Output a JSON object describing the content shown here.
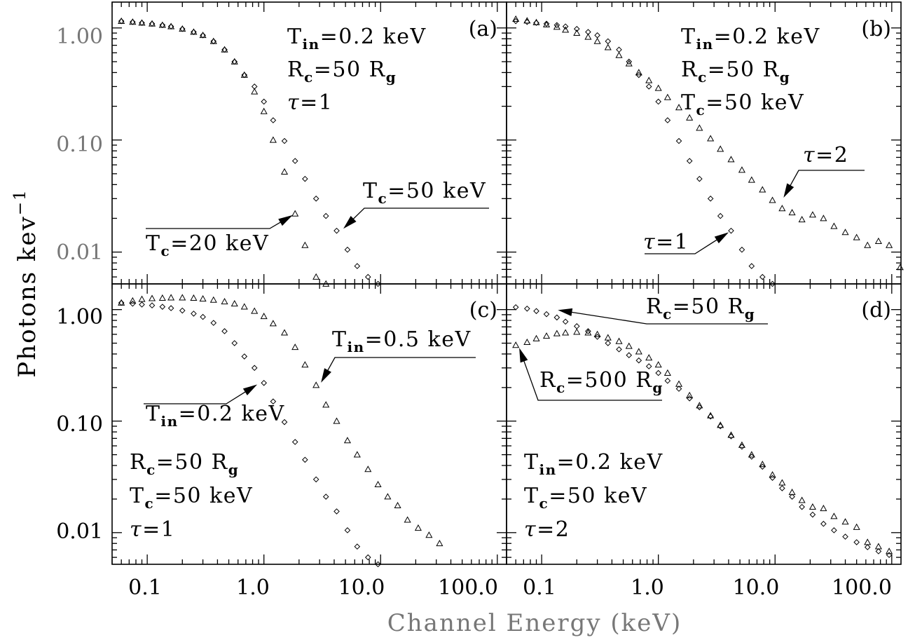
{
  "figure": {
    "xlabel": "Channel Energy (keV)",
    "ylabel_main": "Photons kev",
    "ylabel_sup": "−1",
    "y_ticks": [
      "1.00",
      "0.10",
      "0.01"
    ],
    "x_ticks": [
      "0.1",
      "1.0",
      "10.0",
      "100.0"
    ]
  },
  "chart_data": [
    {
      "type": "scatter",
      "panel": "(a)",
      "xscale": "log",
      "yscale": "log",
      "xlim": [
        0.05,
        120
      ],
      "ylim": [
        0.0052,
        1.7
      ],
      "series": [
        {
          "marker": "diamond",
          "x": [
            0.06,
            0.075,
            0.09,
            0.11,
            0.135,
            0.16,
            0.2,
            0.25,
            0.3,
            0.37,
            0.46,
            0.56,
            0.68,
            0.83,
            1.0,
            1.2,
            1.5,
            1.85,
            2.25,
            2.8,
            3.4,
            4.2,
            5.2,
            6.3,
            7.8,
            9.5
          ],
          "y": [
            1.15,
            1.13,
            1.11,
            1.09,
            1.06,
            1.03,
            0.98,
            0.92,
            0.86,
            0.76,
            0.64,
            0.5,
            0.38,
            0.3,
            0.22,
            0.15,
            0.098,
            0.065,
            0.045,
            0.03,
            0.021,
            0.0155,
            0.0105,
            0.0075,
            0.006,
            0.0052
          ]
        },
        {
          "marker": "triangle",
          "x": [
            0.06,
            0.075,
            0.09,
            0.11,
            0.135,
            0.16,
            0.2,
            0.25,
            0.3,
            0.37,
            0.46,
            0.56,
            0.68,
            0.83,
            1.0,
            1.2,
            1.5,
            1.85,
            2.25,
            2.8,
            3.4
          ],
          "y": [
            1.15,
            1.13,
            1.11,
            1.09,
            1.06,
            1.03,
            0.98,
            0.92,
            0.86,
            0.76,
            0.64,
            0.5,
            0.38,
            0.27,
            0.18,
            0.1,
            0.052,
            0.022,
            0.0115,
            0.006,
            0.0052
          ]
        }
      ],
      "annotations": [
        {
          "main": "T",
          "sub": "in",
          "tail": "=0.2 keV"
        },
        {
          "main": "R",
          "sub": "c",
          "tail": "=50 R",
          "sub2": "g"
        },
        {
          "main": "τ",
          "tail": "=1"
        },
        {
          "main": "T",
          "sub": "c",
          "tail": "=50 keV",
          "arrow_to": [
            4.6,
            0.0155
          ]
        },
        {
          "main": "T",
          "sub": "c",
          "tail": "=20 keV",
          "arrow_to": [
            1.85,
            0.022
          ]
        }
      ]
    },
    {
      "type": "scatter",
      "panel": "(b)",
      "xscale": "log",
      "yscale": "log",
      "xlim": [
        0.05,
        120
      ],
      "ylim": [
        0.0052,
        1.7
      ],
      "series": [
        {
          "marker": "diamond",
          "x": [
            0.06,
            0.075,
            0.09,
            0.11,
            0.135,
            0.16,
            0.2,
            0.25,
            0.3,
            0.37,
            0.46,
            0.56,
            0.68,
            0.83,
            1.0,
            1.2,
            1.5,
            1.85,
            2.25,
            2.8,
            3.4,
            4.2,
            5.2,
            6.3,
            7.8,
            9.5
          ],
          "y": [
            1.15,
            1.13,
            1.11,
            1.09,
            1.06,
            1.03,
            0.98,
            0.92,
            0.86,
            0.76,
            0.64,
            0.5,
            0.38,
            0.3,
            0.22,
            0.15,
            0.098,
            0.065,
            0.045,
            0.03,
            0.021,
            0.0155,
            0.0105,
            0.0075,
            0.006,
            0.0052
          ]
        },
        {
          "marker": "triangle",
          "x": [
            0.06,
            0.075,
            0.09,
            0.11,
            0.135,
            0.16,
            0.2,
            0.25,
            0.3,
            0.37,
            0.46,
            0.56,
            0.68,
            0.83,
            1.0,
            1.2,
            1.5,
            1.85,
            2.25,
            2.8,
            3.4,
            4.2,
            5.2,
            6.3,
            7.8,
            9.5,
            11.5,
            14,
            17,
            21,
            26,
            32,
            40,
            50,
            62,
            77,
            95,
            118
          ],
          "y": [
            1.2,
            1.16,
            1.12,
            1.07,
            1.02,
            0.96,
            0.9,
            0.83,
            0.76,
            0.67,
            0.57,
            0.48,
            0.4,
            0.34,
            0.29,
            0.24,
            0.195,
            0.158,
            0.128,
            0.103,
            0.083,
            0.067,
            0.054,
            0.044,
            0.036,
            0.029,
            0.0245,
            0.0225,
            0.0195,
            0.0215,
            0.02,
            0.017,
            0.015,
            0.0135,
            0.0115,
            0.0125,
            0.0115,
            0.0073
          ]
        }
      ],
      "annotations": [
        {
          "main": "T",
          "sub": "in",
          "tail": "=0.2 keV"
        },
        {
          "main": "R",
          "sub": "c",
          "tail": "=50 R",
          "sub2": "g"
        },
        {
          "main": "T",
          "sub": "c",
          "tail": "=50 keV"
        },
        {
          "main": "τ",
          "tail": "=2",
          "arrow_to": [
            11.5,
            0.029
          ]
        },
        {
          "main": "τ",
          "tail": "=1",
          "arrow_to": [
            4.2,
            0.0155
          ]
        }
      ]
    },
    {
      "type": "scatter",
      "panel": "(c)",
      "xscale": "log",
      "yscale": "log",
      "xlim": [
        0.05,
        120
      ],
      "ylim": [
        0.0052,
        1.7
      ],
      "series": [
        {
          "marker": "diamond",
          "x": [
            0.06,
            0.075,
            0.09,
            0.11,
            0.135,
            0.16,
            0.2,
            0.25,
            0.3,
            0.37,
            0.46,
            0.56,
            0.68,
            0.83,
            1.0,
            1.2,
            1.5,
            1.85,
            2.25,
            2.8,
            3.4,
            4.2,
            5.2,
            6.3,
            7.8,
            9.5
          ],
          "y": [
            1.15,
            1.13,
            1.11,
            1.09,
            1.06,
            1.03,
            0.98,
            0.92,
            0.86,
            0.76,
            0.64,
            0.5,
            0.38,
            0.3,
            0.22,
            0.15,
            0.098,
            0.065,
            0.045,
            0.03,
            0.021,
            0.0155,
            0.0105,
            0.0075,
            0.006,
            0.0052
          ]
        },
        {
          "marker": "triangle",
          "x": [
            0.06,
            0.075,
            0.09,
            0.11,
            0.135,
            0.16,
            0.2,
            0.25,
            0.3,
            0.37,
            0.46,
            0.56,
            0.68,
            0.83,
            1.0,
            1.2,
            1.5,
            1.85,
            2.25,
            2.8,
            3.4,
            4.2,
            5.2,
            6.3,
            7.8,
            9.5,
            11.5,
            14,
            17,
            21,
            26,
            32
          ],
          "y": [
            1.15,
            1.2,
            1.24,
            1.26,
            1.27,
            1.28,
            1.28,
            1.27,
            1.25,
            1.22,
            1.18,
            1.13,
            1.06,
            0.97,
            0.87,
            0.75,
            0.62,
            0.46,
            0.32,
            0.21,
            0.14,
            0.1,
            0.067,
            0.05,
            0.037,
            0.027,
            0.021,
            0.0175,
            0.013,
            0.011,
            0.0095,
            0.008
          ]
        }
      ],
      "annotations": [
        {
          "main": "T",
          "sub": "in",
          "tail": "=0.5 keV",
          "arrow_to": [
            3.0,
            0.21
          ]
        },
        {
          "main": "T",
          "sub": "in",
          "tail": "=0.2 keV",
          "arrow_to": [
            0.92,
            0.22
          ]
        },
        {
          "main": "R",
          "sub": "c",
          "tail": "=50 R",
          "sub2": "g"
        },
        {
          "main": "T",
          "sub": "c",
          "tail": "=50 keV"
        },
        {
          "main": "τ",
          "tail": "=1"
        }
      ]
    },
    {
      "type": "scatter",
      "panel": "(d)",
      "xscale": "log",
      "yscale": "log",
      "xlim": [
        0.05,
        120
      ],
      "ylim": [
        0.0052,
        1.7
      ],
      "series": [
        {
          "marker": "diamond",
          "x": [
            0.06,
            0.075,
            0.09,
            0.11,
            0.135,
            0.16,
            0.2,
            0.25,
            0.3,
            0.37,
            0.46,
            0.56,
            0.68,
            0.83,
            1.0,
            1.2,
            1.5,
            1.85,
            2.25,
            2.8,
            3.4,
            4.2,
            5.2,
            6.3,
            7.8,
            9.5,
            11.5,
            14,
            17,
            21,
            26,
            32,
            40,
            50,
            62,
            77,
            95
          ],
          "y": [
            1.05,
            1.02,
            0.97,
            0.91,
            0.85,
            0.78,
            0.71,
            0.64,
            0.57,
            0.5,
            0.44,
            0.39,
            0.35,
            0.31,
            0.27,
            0.23,
            0.195,
            0.16,
            0.133,
            0.11,
            0.09,
            0.073,
            0.059,
            0.048,
            0.039,
            0.031,
            0.025,
            0.021,
            0.017,
            0.0145,
            0.012,
            0.0105,
            0.0092,
            0.0082,
            0.0074,
            0.0068,
            0.0063
          ]
        },
        {
          "marker": "triangle",
          "x": [
            0.06,
            0.075,
            0.09,
            0.11,
            0.135,
            0.16,
            0.2,
            0.25,
            0.3,
            0.37,
            0.46,
            0.56,
            0.68,
            0.83,
            1.0,
            1.2,
            1.5,
            1.85,
            2.25,
            2.8,
            3.4,
            4.2,
            5.2,
            6.3,
            7.8,
            9.5,
            11.5,
            14,
            17,
            21,
            26,
            32,
            40,
            50,
            62,
            77,
            95
          ],
          "y": [
            0.48,
            0.51,
            0.55,
            0.58,
            0.61,
            0.62,
            0.63,
            0.62,
            0.6,
            0.56,
            0.52,
            0.47,
            0.42,
            0.37,
            0.32,
            0.27,
            0.215,
            0.17,
            0.138,
            0.112,
            0.092,
            0.075,
            0.061,
            0.05,
            0.041,
            0.033,
            0.028,
            0.023,
            0.0195,
            0.017,
            0.0165,
            0.014,
            0.0125,
            0.0112,
            0.0082,
            0.0075,
            0.0068
          ]
        }
      ],
      "annotations": [
        {
          "main": "R",
          "sub": "c",
          "tail": "=50 R",
          "sub2": "g",
          "arrow_to": [
            0.13,
            1.0
          ]
        },
        {
          "main": "R",
          "sub": "c",
          "tail": "=500 R",
          "sub2": "g",
          "arrow_to": [
            0.063,
            0.48
          ]
        },
        {
          "main": "T",
          "sub": "in",
          "tail": "=0.2 keV"
        },
        {
          "main": "T",
          "sub": "c",
          "tail": "=50 keV"
        },
        {
          "main": "τ",
          "tail": "=2"
        }
      ]
    }
  ]
}
